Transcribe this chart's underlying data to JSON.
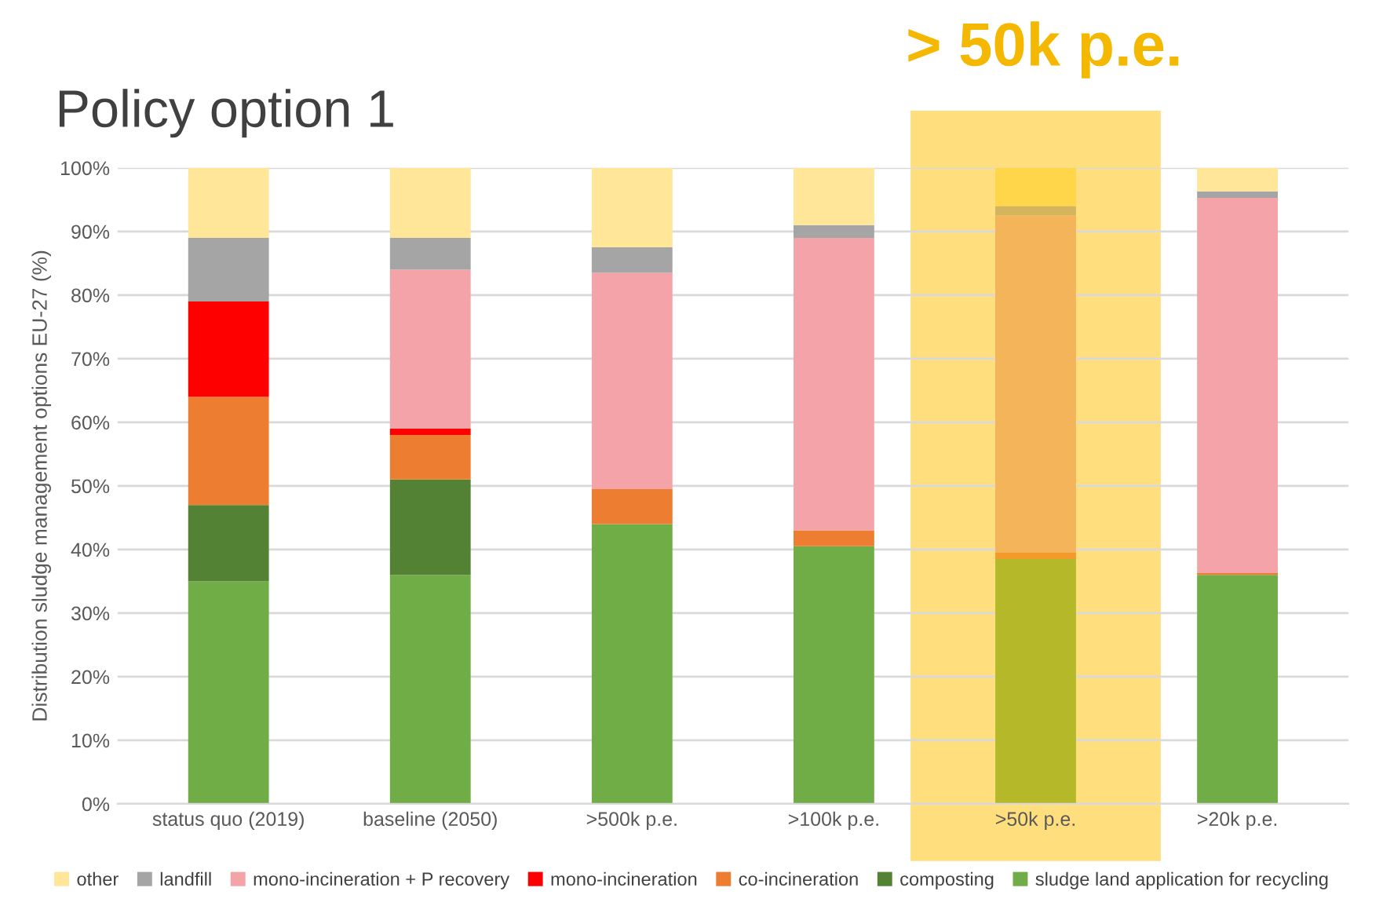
{
  "chart_data": {
    "type": "bar",
    "stacked": true,
    "title": "Policy option 1",
    "ylabel": "Distribution sludge management options EU-27 (%)",
    "categories": [
      "status quo (2019)",
      "baseline (2050)",
      ">500k p.e.",
      ">100k p.e.",
      ">50k p.e.",
      ">20k p.e."
    ],
    "series": [
      {
        "name": "sludge land application for recycling",
        "color": "#70ad47",
        "colors": [
          "#70ad47",
          "#70ad47",
          "#70ad47",
          "#70ad47",
          "#b5b829",
          "#70ad47"
        ],
        "values": [
          35,
          36,
          44,
          40.5,
          38.5,
          36
        ]
      },
      {
        "name": "composting",
        "color": "#548235",
        "values": [
          12,
          15,
          0,
          0,
          0,
          0
        ]
      },
      {
        "name": "co-incineration",
        "color": "#ed7d31",
        "colors": [
          "#ed7d31",
          "#ed7d31",
          "#ed7d31",
          "#ed7d31",
          "#f39a2c",
          "#ed7d31"
        ],
        "values": [
          17,
          7,
          5.5,
          2.5,
          1,
          0.3
        ]
      },
      {
        "name": "mono-incineration",
        "color": "#ff0000",
        "values": [
          15,
          1,
          0,
          0,
          0,
          0
        ]
      },
      {
        "name": "mono-incineration + P recovery",
        "color": "#f4a3a8",
        "colors": [
          "#f4a3a8",
          "#f4a3a8",
          "#f4a3a8",
          "#f4a3a8",
          "#f4b45a",
          "#f4a3a8"
        ],
        "values": [
          0,
          25,
          34,
          46,
          53,
          59
        ]
      },
      {
        "name": "landfill",
        "color": "#a5a5a5",
        "colors": [
          "#a5a5a5",
          "#a5a5a5",
          "#a5a5a5",
          "#a5a5a5",
          "#d4b45c",
          "#a5a5a5"
        ],
        "values": [
          10,
          5,
          4,
          2,
          1.5,
          1
        ]
      },
      {
        "name": "other",
        "color": "#ffe699",
        "colors": [
          "#ffe699",
          "#ffe699",
          "#ffe699",
          "#ffe699",
          "#ffd54a",
          "#ffe699"
        ],
        "values": [
          11,
          11,
          12.5,
          9,
          6,
          3.7
        ]
      }
    ],
    "ylim": [
      0,
      100
    ],
    "yticks": [
      {
        "value": 0,
        "label": "0%"
      },
      {
        "value": 10,
        "label": "10%"
      },
      {
        "value": 20,
        "label": "20%"
      },
      {
        "value": 30,
        "label": "30%"
      },
      {
        "value": 40,
        "label": "40%"
      },
      {
        "value": 50,
        "label": "50%"
      },
      {
        "value": 60,
        "label": "60%"
      },
      {
        "value": 70,
        "label": "70%"
      },
      {
        "value": 80,
        "label": "80%"
      },
      {
        "value": 90,
        "label": "90%"
      },
      {
        "value": 100,
        "label": "100%"
      }
    ],
    "grid": "y",
    "legend": "bottom",
    "annotations": [
      "> 50k p.e."
    ]
  }
}
